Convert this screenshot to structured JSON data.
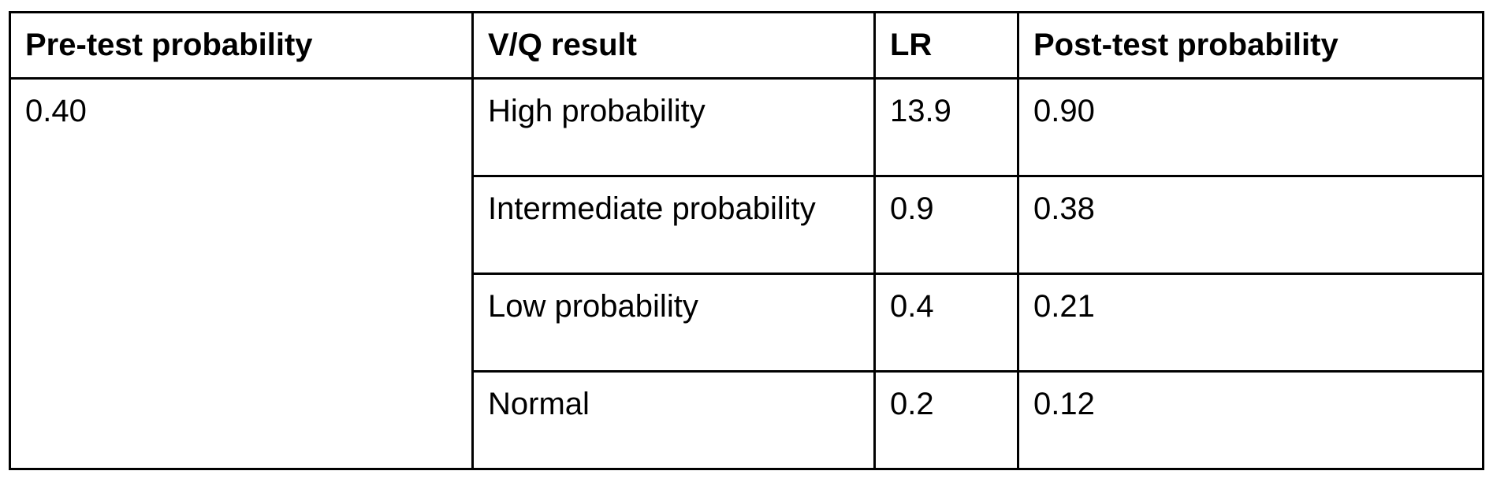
{
  "table": {
    "headers": [
      "Pre-test probability",
      "V/Q result",
      "LR",
      "Post-test probability"
    ],
    "pretest_probability": "0.40",
    "rows": [
      {
        "vq_result": "High probability",
        "lr": "13.9",
        "posttest": "0.90"
      },
      {
        "vq_result": "Intermediate probability",
        "lr": "0.9",
        "posttest": "0.38"
      },
      {
        "vq_result": "Low probability",
        "lr": "0.4",
        "posttest": "0.21"
      },
      {
        "vq_result": "Normal",
        "lr": "0.2",
        "posttest": "0.12"
      }
    ]
  }
}
